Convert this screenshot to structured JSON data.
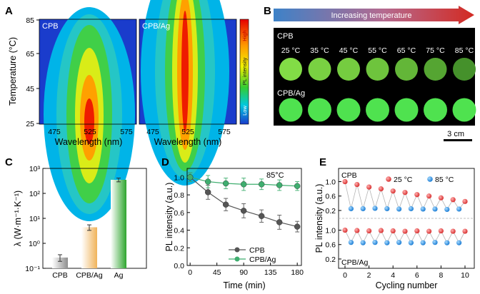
{
  "panels": {
    "a": {
      "label": "A",
      "subpanels": [
        "CPB",
        "CPB/Ag"
      ],
      "x_ticks": [
        "475",
        "525",
        "575"
      ],
      "y_ticks": [
        "25",
        "45",
        "65",
        "85"
      ],
      "xlabel": "Wavelength (nm)",
      "ylabel": "Temperature (°C)",
      "colorbar": {
        "high": "High",
        "mid": "PL intensity",
        "low": "Low"
      }
    },
    "b": {
      "label": "B",
      "arrow_text": "Increasing temperature",
      "row1_label": "CPB",
      "row2_label": "CPB/Ag",
      "temps": [
        "25 °C",
        "35 °C",
        "45 °C",
        "55 °C",
        "65 °C",
        "75 °C",
        "85 °C"
      ],
      "row1_brightness": [
        1.0,
        0.9,
        0.85,
        0.78,
        0.65,
        0.5,
        0.32
      ],
      "row2_brightness": [
        1.0,
        1.0,
        1.0,
        1.0,
        1.0,
        1.0,
        1.0
      ],
      "scale_bar": "3 cm"
    },
    "c": {
      "label": "C",
      "ylabel": "λ (W·m⁻¹·K⁻¹)"
    },
    "d": {
      "label": "D",
      "annotation": "85°C",
      "xlabel": "Time (min)",
      "ylabel": "PL intensity (a.u.)"
    },
    "e": {
      "label": "E",
      "top_label": "CPB",
      "bottom_label": "CPB/Ag",
      "legend": [
        "25 °C",
        "85 °C"
      ],
      "xlabel": "Cycling number",
      "ylabel": "PL intensity (a.u.)"
    }
  },
  "chart_data": [
    {
      "panel": "C",
      "type": "bar",
      "categories": [
        "CPB",
        "CPB/Ag",
        "Ag"
      ],
      "values": [
        0.27,
        4.4,
        350
      ],
      "errors": [
        0.08,
        1.1,
        60
      ],
      "yscale": "log",
      "ylim": [
        0.1,
        1000
      ],
      "yticks": [
        "10⁻¹",
        "10⁰",
        "10¹",
        "10²",
        "10³"
      ],
      "colors": [
        "#9a9a9a",
        "#f2c27a",
        "#3fae3f"
      ],
      "ylabel": "λ (W·m⁻¹·K⁻¹)"
    },
    {
      "panel": "D",
      "type": "line",
      "x": [
        0,
        30,
        60,
        90,
        120,
        150,
        180
      ],
      "xticks": [
        0,
        45,
        90,
        135,
        180
      ],
      "yticks": [
        "0.0",
        "0.2",
        "0.4",
        "0.6",
        "0.8",
        "1.0"
      ],
      "ylim": [
        0,
        1.1
      ],
      "xlim": [
        -5,
        187
      ],
      "series": [
        {
          "name": "CPB",
          "color": "#555555",
          "values": [
            1.0,
            0.83,
            0.69,
            0.62,
            0.56,
            0.49,
            0.44
          ],
          "errors": [
            0.05,
            0.08,
            0.07,
            0.08,
            0.07,
            0.08,
            0.06
          ]
        },
        {
          "name": "CPB/Ag",
          "color": "#3fae6f",
          "values": [
            1.0,
            0.95,
            0.93,
            0.92,
            0.92,
            0.91,
            0.9
          ],
          "errors": [
            0.05,
            0.07,
            0.06,
            0.07,
            0.06,
            0.06,
            0.05
          ]
        }
      ],
      "xlabel": "Time (min)",
      "ylabel": "PL intensity (a.u.)",
      "annotation": "85°C"
    },
    {
      "panel": "E",
      "type": "scatter",
      "x": [
        0,
        0.5,
        1,
        1.5,
        2,
        2.5,
        3,
        3.5,
        4,
        4.5,
        5,
        5.5,
        6,
        6.5,
        7,
        7.5,
        8,
        8.5,
        9,
        9.5,
        10
      ],
      "xticks": [
        0,
        2,
        4,
        6,
        8,
        10
      ],
      "series": [
        {
          "name": "CPB",
          "values_25C": [
            1.0,
            0.92,
            0.85,
            0.8,
            0.74,
            0.7,
            0.64,
            0.6,
            0.55,
            0.5,
            0.45
          ],
          "values_85C": [
            0.25,
            0.25,
            0.26,
            0.25,
            0.24,
            0.25,
            0.24,
            0.24,
            0.23,
            0.24
          ]
        },
        {
          "name": "CPB/Ag",
          "values_25C": [
            1.0,
            0.99,
            0.98,
            0.99,
            0.98,
            0.97,
            0.98,
            0.97,
            0.98,
            0.97,
            0.97
          ],
          "values_85C": [
            0.66,
            0.65,
            0.66,
            0.65,
            0.66,
            0.65,
            0.65,
            0.66,
            0.65,
            0.65
          ]
        }
      ],
      "yticks_top": [
        "0.2",
        "0.6",
        "1.0"
      ],
      "yticks_bottom": [
        "0.2",
        "0.6",
        "1.0"
      ],
      "legend": [
        "25 °C",
        "85 °C"
      ],
      "colors": {
        "25C": "#e84343",
        "85C": "#2b8fe0"
      }
    }
  ]
}
